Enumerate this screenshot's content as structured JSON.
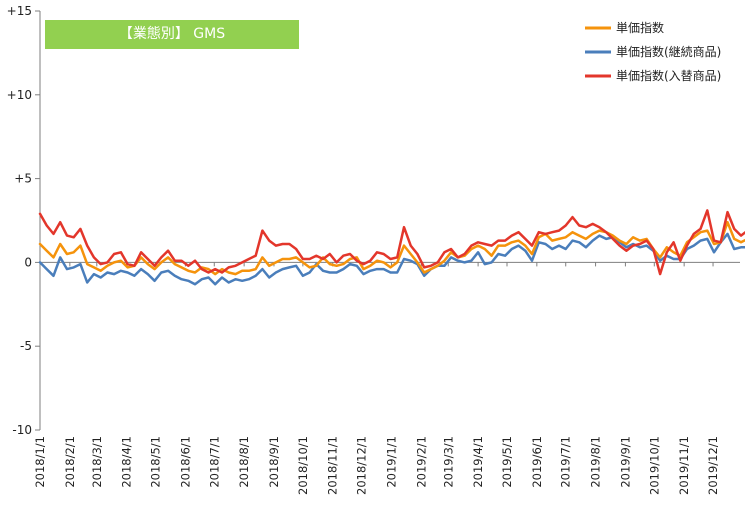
{
  "badge_label": "【業態別】 GMS",
  "chart_data": {
    "type": "line",
    "title": "【業態別】 GMS",
    "xlabel": "",
    "ylabel": "",
    "ylim": [
      -10,
      15
    ],
    "yticks": [
      {
        "value": 15,
        "label": "+15"
      },
      {
        "value": 10,
        "label": "+10"
      },
      {
        "value": 5,
        "label": "+5"
      },
      {
        "value": 0,
        "label": "0"
      },
      {
        "value": -5,
        "label": "-5"
      },
      {
        "value": -10,
        "label": "-10"
      }
    ],
    "x_start": "2018/1/1",
    "x_end": "2019/12/29",
    "x_step_days": 7,
    "x_labels": [
      "2018/1/1",
      "2018/2/1",
      "2018/3/1",
      "2018/4/1",
      "2018/5/1",
      "2018/6/1",
      "2018/7/1",
      "2018/8/1",
      "2018/9/1",
      "2018/10/1",
      "2018/11/1",
      "2018/12/1",
      "2019/1/1",
      "2019/2/1",
      "2019/3/1",
      "2019/4/1",
      "2019/5/1",
      "2019/6/1",
      "2019/7/1",
      "2019/8/1",
      "2019/9/1",
      "2019/10/1",
      "2019/11/1",
      "2019/12/1"
    ],
    "grid": false,
    "legend_position": "top-right",
    "series": [
      {
        "name": "単価指数",
        "color": "#f5930c",
        "values": [
          1.1,
          0.7,
          0.3,
          1.1,
          0.5,
          0.6,
          1.0,
          -0.1,
          -0.3,
          -0.5,
          -0.2,
          0.0,
          0.1,
          -0.3,
          -0.2,
          0.3,
          -0.1,
          -0.4,
          0.0,
          0.3,
          -0.1,
          -0.3,
          -0.5,
          -0.6,
          -0.3,
          -0.4,
          -0.7,
          -0.4,
          -0.6,
          -0.7,
          -0.5,
          -0.5,
          -0.4,
          0.3,
          -0.2,
          0.0,
          0.2,
          0.2,
          0.3,
          0.0,
          -0.3,
          -0.2,
          0.3,
          -0.1,
          -0.2,
          -0.1,
          0.2,
          0.3,
          -0.4,
          -0.2,
          0.1,
          0.0,
          -0.3,
          0.0,
          1.0,
          0.5,
          0.0,
          -0.6,
          -0.4,
          -0.2,
          0.1,
          0.6,
          0.3,
          0.4,
          0.8,
          1.0,
          0.8,
          0.4,
          1.0,
          1.0,
          1.2,
          1.3,
          1.0,
          0.5,
          1.5,
          1.7,
          1.3,
          1.4,
          1.5,
          1.8,
          1.6,
          1.4,
          1.7,
          1.9,
          1.8,
          1.6,
          1.3,
          1.1,
          1.5,
          1.3,
          1.4,
          0.8,
          0.3,
          0.9,
          0.6,
          0.4,
          1.2,
          1.5,
          1.8,
          1.9,
          1.1,
          1.2,
          2.4,
          1.4,
          1.2,
          1.4
        ]
      },
      {
        "name": "単価指数(継続商品)",
        "color": "#4a7ebb",
        "values": [
          0.0,
          -0.4,
          -0.8,
          0.3,
          -0.4,
          -0.3,
          -0.1,
          -1.2,
          -0.7,
          -0.9,
          -0.6,
          -0.7,
          -0.5,
          -0.6,
          -0.8,
          -0.4,
          -0.7,
          -1.1,
          -0.6,
          -0.5,
          -0.8,
          -1.0,
          -1.1,
          -1.3,
          -1.0,
          -0.9,
          -1.3,
          -0.9,
          -1.2,
          -1.0,
          -1.1,
          -1.0,
          -0.8,
          -0.4,
          -0.9,
          -0.6,
          -0.4,
          -0.3,
          -0.2,
          -0.8,
          -0.6,
          -0.1,
          -0.5,
          -0.6,
          -0.6,
          -0.4,
          -0.1,
          -0.2,
          -0.7,
          -0.5,
          -0.4,
          -0.4,
          -0.6,
          -0.6,
          0.2,
          0.1,
          -0.1,
          -0.8,
          -0.4,
          -0.2,
          -0.2,
          0.3,
          0.1,
          0.0,
          0.1,
          0.6,
          -0.1,
          0.0,
          0.5,
          0.4,
          0.8,
          1.0,
          0.7,
          0.1,
          1.2,
          1.1,
          0.8,
          1.0,
          0.8,
          1.3,
          1.2,
          0.9,
          1.3,
          1.6,
          1.4,
          1.5,
          1.2,
          0.9,
          1.1,
          0.9,
          1.0,
          0.7,
          0.1,
          0.4,
          0.2,
          0.2,
          0.8,
          1.0,
          1.3,
          1.4,
          0.6,
          1.2,
          1.7,
          0.8,
          0.9,
          0.9
        ]
      },
      {
        "name": "単価指数(入替商品)",
        "color": "#e3362b",
        "values": [
          2.9,
          2.2,
          1.7,
          2.4,
          1.6,
          1.5,
          2.0,
          1.0,
          0.3,
          -0.1,
          0.0,
          0.5,
          0.6,
          -0.1,
          -0.2,
          0.6,
          0.2,
          -0.2,
          0.3,
          0.7,
          0.1,
          0.1,
          -0.2,
          0.1,
          -0.4,
          -0.6,
          -0.4,
          -0.6,
          -0.3,
          -0.2,
          0.0,
          0.2,
          0.4,
          1.9,
          1.3,
          1.0,
          1.1,
          1.1,
          0.8,
          0.2,
          0.2,
          0.4,
          0.2,
          0.5,
          0.0,
          0.4,
          0.5,
          0.1,
          -0.1,
          0.1,
          0.6,
          0.5,
          0.2,
          0.3,
          2.1,
          1.0,
          0.5,
          -0.3,
          -0.2,
          0.0,
          0.6,
          0.8,
          0.3,
          0.5,
          1.0,
          1.2,
          1.1,
          1.0,
          1.3,
          1.3,
          1.6,
          1.8,
          1.4,
          1.0,
          1.8,
          1.7,
          1.8,
          1.9,
          2.2,
          2.7,
          2.2,
          2.1,
          2.3,
          2.1,
          1.8,
          1.4,
          1.0,
          0.7,
          1.0,
          1.1,
          1.3,
          0.8,
          -0.7,
          0.6,
          1.2,
          0.1,
          1.0,
          1.7,
          2.0,
          3.1,
          1.3,
          1.2,
          3.0,
          2.0,
          1.6,
          1.9
        ]
      }
    ]
  }
}
